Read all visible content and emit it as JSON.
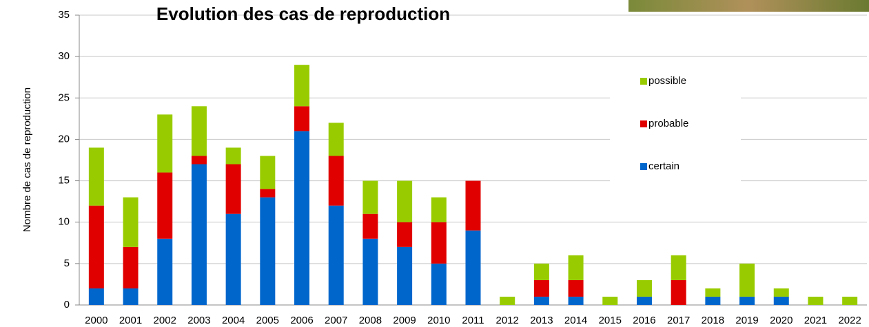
{
  "chart_data": {
    "type": "bar",
    "stacked": true,
    "title": "Evolution des cas de reproduction",
    "y_label": "Nombre de cas de reproduction",
    "categories": [
      "2000",
      "2001",
      "2002",
      "2003",
      "2004",
      "2005",
      "2006",
      "2007",
      "2008",
      "2009",
      "2010",
      "2011",
      "2012",
      "2013",
      "2014",
      "2015",
      "2016",
      "2017",
      "2018",
      "2019",
      "2020",
      "2021",
      "2022"
    ],
    "series": [
      {
        "name": "certain",
        "color": "#0066cc",
        "values": [
          2,
          2,
          8,
          17,
          11,
          13,
          21,
          12,
          8,
          7,
          5,
          9,
          0,
          1,
          1,
          0,
          1,
          0,
          1,
          1,
          1,
          0,
          0
        ]
      },
      {
        "name": "probable",
        "color": "#e00000",
        "values": [
          10,
          5,
          8,
          1,
          6,
          1,
          3,
          6,
          3,
          3,
          5,
          6,
          0,
          2,
          2,
          0,
          0,
          3,
          0,
          0,
          0,
          0,
          0
        ]
      },
      {
        "name": "possible",
        "color": "#99cc00",
        "values": [
          7,
          6,
          7,
          6,
          2,
          4,
          5,
          4,
          4,
          5,
          3,
          0,
          1,
          2,
          3,
          1,
          2,
          3,
          1,
          4,
          1,
          1,
          1
        ]
      }
    ],
    "ylim": [
      0,
      35
    ],
    "yticks": [
      0,
      5,
      10,
      15,
      20,
      25,
      30,
      35
    ],
    "grid": true
  }
}
